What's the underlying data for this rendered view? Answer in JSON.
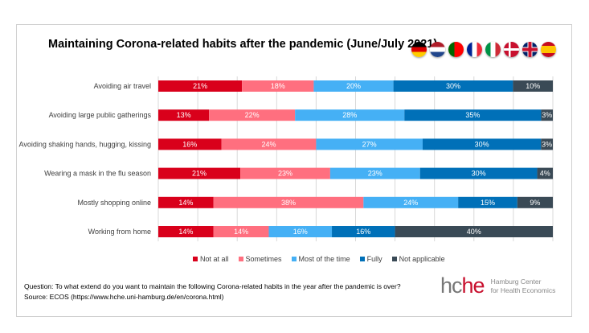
{
  "chart_data": {
    "type": "bar",
    "orientation": "horizontal",
    "stacked": true,
    "title": "Maintaining Corona-related habits after the pandemic (June/July 2021)",
    "categories": [
      "Avoiding air travel",
      "Avoiding large public gatherings",
      "Avoiding shaking hands, hugging, kissing",
      "Wearing a mask in the flu season",
      "Mostly shopping online",
      "Working from home"
    ],
    "series": [
      {
        "name": "Not at all",
        "color": "#d9001b",
        "values": [
          21,
          13,
          16,
          21,
          14,
          14
        ]
      },
      {
        "name": "Sometimes",
        "color": "#ff6f7f",
        "values": [
          18,
          22,
          24,
          23,
          38,
          14
        ]
      },
      {
        "name": "Most of the time",
        "color": "#45b0f5",
        "values": [
          20,
          28,
          27,
          23,
          24,
          16
        ]
      },
      {
        "name": "Fully",
        "color": "#0070b8",
        "values": [
          30,
          35,
          30,
          30,
          15,
          16
        ]
      },
      {
        "name": "Not applicable",
        "color": "#3a4a56",
        "values": [
          10,
          3,
          3,
          4,
          9,
          40
        ]
      }
    ],
    "xlim": [
      0,
      100
    ],
    "grid": true,
    "legend": "bottom",
    "value_suffix": "%"
  },
  "flags": [
    "germany-flag",
    "netherlands-flag",
    "portugal-flag",
    "france-flag",
    "italy-flag",
    "denmark-flag",
    "uk-flag",
    "spain-flag"
  ],
  "note": {
    "question": "Question: To what extend do you want to maintain the following Corona-related habits in the year after the pandemic is over?",
    "source": "Source: ECOS (https://www.hche.uni-hamburg.de/en/corona.html)"
  },
  "logo": {
    "mark_a": "hc",
    "mark_b": "he",
    "line1": "Hamburg Center",
    "line2": "for Health Economics"
  }
}
